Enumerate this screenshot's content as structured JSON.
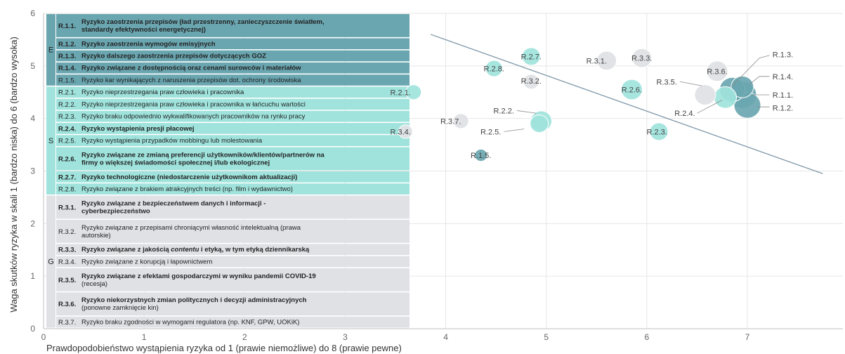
{
  "chart_data": {
    "type": "scatter",
    "xlabel": "Prawdopodobieństwo wystąpienia ryzyka od 1 (prawie niemożliwe) do 8 (prawie pewne)",
    "ylabel": "Waga skutków ryzyka w skali 1 (bardzo niska) do 6 (bardzo wysoka)",
    "xlim": [
      0,
      7.95
    ],
    "ylim": [
      0,
      6
    ],
    "x_ticks": [
      "0",
      "1",
      "2",
      "3",
      "4",
      "5",
      "6",
      "7"
    ],
    "y_ticks": [
      "0",
      "1",
      "2",
      "3",
      "4",
      "5",
      "6"
    ],
    "grid": true,
    "colors": {
      "E": "#6aa6b0",
      "S": "#9fe3dc",
      "G": "#dfe1e5",
      "trend": "#7f97a8"
    },
    "trendline": {
      "x": [
        3.85,
        7.75
      ],
      "y": [
        5.6,
        2.95
      ]
    },
    "points": [
      {
        "label": "R.1.1.",
        "group": "E",
        "x": 6.95,
        "y": 4.45,
        "size": 20
      },
      {
        "label": "R.1.2.",
        "group": "E",
        "x": 7.0,
        "y": 4.25,
        "size": 19
      },
      {
        "label": "R.1.3.",
        "group": "E",
        "x": 6.85,
        "y": 4.55,
        "size": 18
      },
      {
        "label": "R.1.4.",
        "group": "E",
        "x": 6.95,
        "y": 4.6,
        "size": 16
      },
      {
        "label": "R.1.5.",
        "group": "E",
        "x": 4.35,
        "y": 3.3,
        "size": 9
      },
      {
        "label": "R.2.1.",
        "group": "S",
        "x": 3.68,
        "y": 4.5,
        "size": 11
      },
      {
        "label": "R.2.2.",
        "group": "S",
        "x": 4.95,
        "y": 3.95,
        "size": 15
      },
      {
        "label": "R.2.3.",
        "group": "S",
        "x": 6.12,
        "y": 3.75,
        "size": 13
      },
      {
        "label": "R.2.4.",
        "group": "S",
        "x": 6.78,
        "y": 4.4,
        "size": 16
      },
      {
        "label": "R.2.5.",
        "group": "S",
        "x": 4.93,
        "y": 3.9,
        "size": 13
      },
      {
        "label": "R.2.6.",
        "group": "S",
        "x": 5.85,
        "y": 4.55,
        "size": 15
      },
      {
        "label": "R.2.7.",
        "group": "S",
        "x": 4.85,
        "y": 5.18,
        "size": 13
      },
      {
        "label": "R.2.8.",
        "group": "S",
        "x": 4.48,
        "y": 4.95,
        "size": 12
      },
      {
        "label": "R.3.1.",
        "group": "G",
        "x": 5.6,
        "y": 5.1,
        "size": 14
      },
      {
        "label": "R.3.2.",
        "group": "G",
        "x": 4.85,
        "y": 4.7,
        "size": 11
      },
      {
        "label": "R.3.3.",
        "group": "G",
        "x": 5.95,
        "y": 5.15,
        "size": 14
      },
      {
        "label": "R.3.4.",
        "group": "G",
        "x": 3.6,
        "y": 3.75,
        "size": 10
      },
      {
        "label": "R.3.5.",
        "group": "G",
        "x": 6.58,
        "y": 4.45,
        "size": 15
      },
      {
        "label": "R.3.6.",
        "group": "G",
        "x": 6.7,
        "y": 4.9,
        "size": 15
      },
      {
        "label": "R.3.7.",
        "group": "G",
        "x": 4.15,
        "y": 3.95,
        "size": 11
      }
    ],
    "point_labels": [
      {
        "text": "R.1.1.",
        "x": 7.25,
        "y": 4.45,
        "leader": [
          [
            7.05,
            4.45
          ],
          [
            7.22,
            4.45
          ]
        ]
      },
      {
        "text": "R.1.2.",
        "x": 7.25,
        "y": 4.2,
        "leader": [
          [
            7.1,
            4.22
          ],
          [
            7.22,
            4.22
          ]
        ]
      },
      {
        "text": "R.1.3.",
        "x": 7.25,
        "y": 5.22,
        "leader": [
          [
            6.85,
            4.62
          ],
          [
            7.12,
            5.15
          ],
          [
            7.22,
            5.2
          ]
        ]
      },
      {
        "text": "R.1.4.",
        "x": 7.25,
        "y": 4.8,
        "leader": [
          [
            7.02,
            4.65
          ],
          [
            7.12,
            4.8
          ],
          [
            7.22,
            4.8
          ]
        ]
      },
      {
        "text": "R.1.5.",
        "x": 4.35,
        "y": 3.3,
        "leader": null
      },
      {
        "text": "R.2.1.",
        "x": 3.55,
        "y": 4.5,
        "leader": null
      },
      {
        "text": "R.2.2.",
        "x": 4.68,
        "y": 4.15,
        "leader": [
          [
            4.71,
            4.15
          ],
          [
            4.9,
            4.1
          ]
        ]
      },
      {
        "text": "R.2.3.",
        "x": 6.1,
        "y": 3.75,
        "leader": null
      },
      {
        "text": "R.2.4.",
        "x": 6.48,
        "y": 4.1,
        "leader": [
          [
            6.5,
            4.1
          ],
          [
            6.75,
            4.35
          ]
        ]
      },
      {
        "text": "R.2.5.",
        "x": 4.55,
        "y": 3.75,
        "leader": [
          [
            4.58,
            3.75
          ],
          [
            4.78,
            3.8
          ]
        ]
      },
      {
        "text": "R.2.6.",
        "x": 5.85,
        "y": 4.55,
        "leader": null
      },
      {
        "text": "R.2.7.",
        "x": 4.85,
        "y": 5.18,
        "leader": null
      },
      {
        "text": "R.2.8.",
        "x": 4.48,
        "y": 4.95,
        "leader": null
      },
      {
        "text": "R.3.1.",
        "x": 5.5,
        "y": 5.1,
        "leader": null
      },
      {
        "text": "R.3.2.",
        "x": 4.85,
        "y": 4.72,
        "leader": null
      },
      {
        "text": "R.3.3.",
        "x": 5.95,
        "y": 5.15,
        "leader": null
      },
      {
        "text": "R.3.4.",
        "x": 3.55,
        "y": 3.75,
        "leader": null
      },
      {
        "text": "R.3.5.",
        "x": 6.3,
        "y": 4.7,
        "leader": [
          [
            6.33,
            4.7
          ],
          [
            6.55,
            4.62
          ]
        ]
      },
      {
        "text": "R.3.6.",
        "x": 6.7,
        "y": 4.9,
        "leader": null
      },
      {
        "text": "R.3.7.",
        "x": 4.05,
        "y": 3.95,
        "leader": null
      }
    ],
    "legend": {
      "rows": [
        {
          "group": "E",
          "code": "R.1.1.",
          "bold": true,
          "lines": [
            [
              {
                "t": "Ryzyko zaostrzenia przepisów (ład przestrzenny, zanieczyszczenie światłem,"
              }
            ],
            [
              {
                "t": "standardy efektywności energetycznej)"
              }
            ]
          ]
        },
        {
          "group": "E",
          "code": "R.1.2.",
          "bold": true,
          "lines": [
            [
              {
                "t": "Ryzyko zaostrzenia wymogów emisyjnych"
              }
            ]
          ]
        },
        {
          "group": "E",
          "code": "R.1.3.",
          "bold": true,
          "lines": [
            [
              {
                "t": "Ryzyko dalszego zaostrzenia przepisów dotyczących GOZ"
              }
            ]
          ]
        },
        {
          "group": "E",
          "code": "R.1.4.",
          "bold": true,
          "lines": [
            [
              {
                "t": "Ryzyko związane z dostępnością oraz cenami surowców i materiałów"
              }
            ]
          ]
        },
        {
          "group": "E",
          "code": "R.1.5.",
          "bold": false,
          "lines": [
            [
              {
                "t": "Ryzyko kar wynikających z naruszenia przepisów dot. ochrony środowiska"
              }
            ]
          ]
        },
        {
          "group": "S",
          "code": "R.2.1.",
          "bold": false,
          "lines": [
            [
              {
                "t": "Ryzyko nieprzestrzegania praw człowieka i pracownika"
              }
            ]
          ]
        },
        {
          "group": "S",
          "code": "R.2.2.",
          "bold": false,
          "lines": [
            [
              {
                "t": "Ryzyko nieprzestrzegania praw człowieka i pracownika w łańcuchu wartości"
              }
            ]
          ]
        },
        {
          "group": "S",
          "code": "R.2.3.",
          "bold": false,
          "lines": [
            [
              {
                "t": "Ryzyko braku odpowiednio wykwalifikowanych pracowników na rynku pracy"
              }
            ]
          ]
        },
        {
          "group": "S",
          "code": "R.2.4.",
          "bold": true,
          "lines": [
            [
              {
                "t": "Ryzyko wystąpienia presji płacowej"
              }
            ]
          ]
        },
        {
          "group": "S",
          "code": "R.2.5.",
          "bold": false,
          "lines": [
            [
              {
                "t": "Ryzyko wystąpienia przypadków mobbingu lub molestowania"
              }
            ]
          ]
        },
        {
          "group": "S",
          "code": "R.2.6.",
          "bold": true,
          "lines": [
            [
              {
                "t": "Ryzyko związane ze zmianą preferencji użytkowników/klientów/partnerów na"
              }
            ],
            [
              {
                "t": "firmy o większej świadomości społecznej i/lub ekologicznej"
              }
            ]
          ]
        },
        {
          "group": "S",
          "code": "R.2.7.",
          "bold": true,
          "lines": [
            [
              {
                "t": "Ryzyko technologiczne (niedostarczenie użytkownikom aktualizacji)"
              }
            ]
          ]
        },
        {
          "group": "S",
          "code": "R.2.8.",
          "bold": false,
          "lines": [
            [
              {
                "t": "Ryzyko związane z brakiem atrakcyjnych treści (np. film i wydawnictwo)"
              }
            ]
          ]
        },
        {
          "group": "G",
          "code": "R.3.1.",
          "bold": true,
          "lines": [
            [
              {
                "t": "Ryzyko związane z bezpieczeństwem danych i informacji -"
              }
            ],
            [
              {
                "t": "cyberbezpieczeństwo"
              }
            ]
          ]
        },
        {
          "group": "G",
          "code": "R.3.2.",
          "bold": false,
          "lines": [
            [
              {
                "t": "Ryzyko związane z przepisami chroniącymi własność intelektualną (prawa"
              }
            ],
            [
              {
                "t": "autorskie)"
              }
            ]
          ]
        },
        {
          "group": "G",
          "code": "R.3.3.",
          "bold": true,
          "lines": [
            [
              {
                "t": "Ryzyko związane z jakością "
              },
              {
                "t": "contentu",
                "i": true
              },
              {
                "t": " i etyką, w tym etyką dziennikarską"
              }
            ]
          ]
        },
        {
          "group": "G",
          "code": "R.3.4.",
          "bold": false,
          "lines": [
            [
              {
                "t": "Ryzyko związane z korupcją i łapownictwem"
              }
            ]
          ]
        },
        {
          "group": "G",
          "code": "R.3.5.",
          "bold": true,
          "lines": [
            [
              {
                "t": "Ryzyko związane z efektami gospodarczymi w wyniku pandemii COVID-19"
              }
            ],
            [
              {
                "t": "(recesja)",
                "n": true
              }
            ]
          ]
        },
        {
          "group": "G",
          "code": "R.3.6.",
          "bold": true,
          "lines": [
            [
              {
                "t": "Ryzyko niekorzystnych zmian politycznych i decyzji administracyjnych"
              }
            ],
            [
              {
                "t": "(ponowne zamknięcie kin)",
                "n": true
              }
            ]
          ]
        },
        {
          "group": "G",
          "code": "R.3.7.",
          "bold": false,
          "lines": [
            [
              {
                "t": "Ryzyko braku zgodności w wymogami regulatora (np. KNF, GPW, UOKiK)"
              }
            ]
          ]
        }
      ]
    }
  }
}
